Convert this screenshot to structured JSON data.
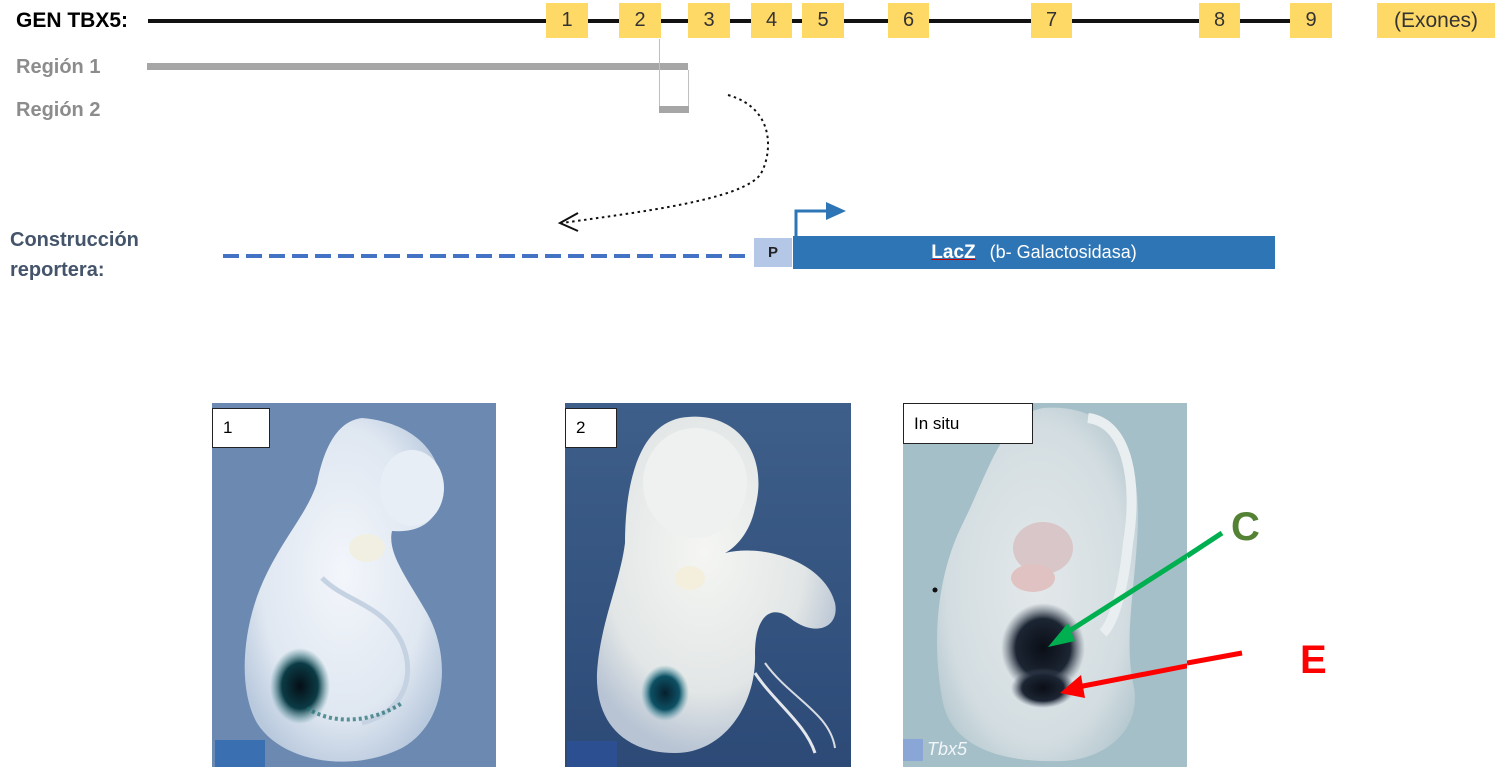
{
  "gene": {
    "label": "GEN TBX5:",
    "exons": [
      "1",
      "2",
      "3",
      "4",
      "5",
      "6",
      "7",
      "8",
      "9"
    ],
    "exons_caption": "(Exones)",
    "exon_color": "#ffd966"
  },
  "regions": [
    {
      "label": "Región 1"
    },
    {
      "label": "Región 2"
    }
  ],
  "construct": {
    "label_line1": "Construcción",
    "label_line2": "reportera:",
    "promoter": "P",
    "reporter_bold": "LacZ",
    "reporter_rest": "(b- Galactosidasa)",
    "color": "#2e75b6"
  },
  "panels": [
    {
      "label": "1"
    },
    {
      "label": "2"
    },
    {
      "label": "In situ",
      "watermark": "Tbx5"
    }
  ],
  "markers": [
    {
      "letter": "C",
      "color": "#548235",
      "arrow_color": "#00b050"
    },
    {
      "letter": "E",
      "color": "#ff0000",
      "arrow_color": "#ff0000"
    }
  ]
}
